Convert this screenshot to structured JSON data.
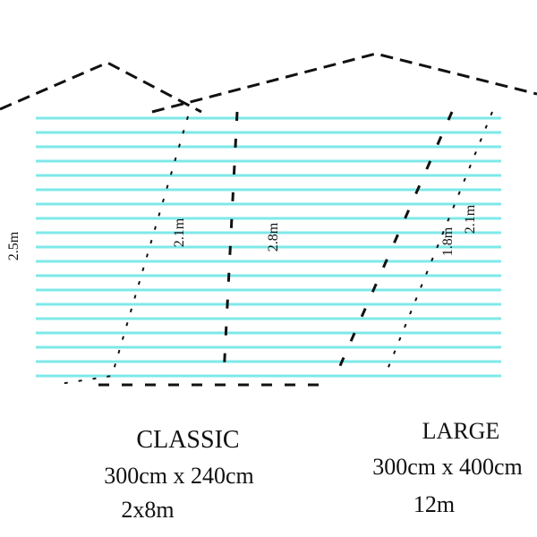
{
  "left": {
    "title": "CLASSIC",
    "size": "300cm x 240cm",
    "area": "2x8m"
  },
  "right": {
    "title": "LARGE",
    "size": "300cm x 400cm",
    "area": "12m"
  },
  "dimensions": [
    "2.5m",
    "2.1m",
    "2.8m",
    "1.8m",
    "2.1m"
  ]
}
